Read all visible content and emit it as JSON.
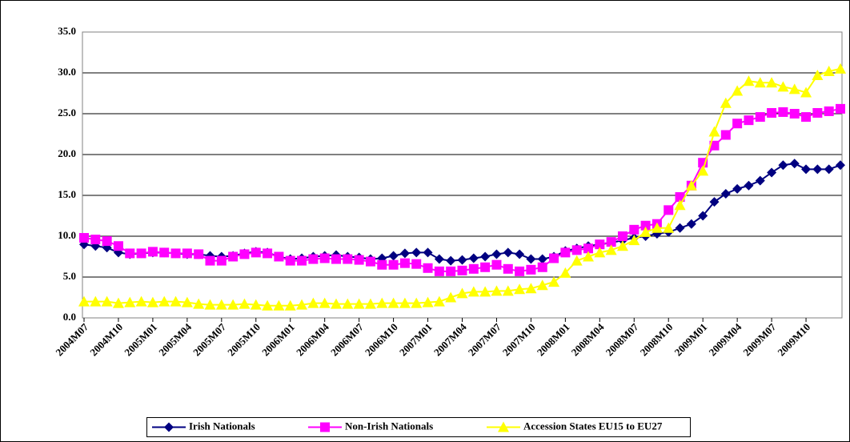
{
  "chart_data": {
    "type": "line",
    "categories": [
      "2004M07",
      null,
      null,
      "2004M10",
      null,
      null,
      "2005M01",
      null,
      null,
      "2005M04",
      null,
      null,
      "2005M07",
      null,
      null,
      "2005M10",
      null,
      null,
      "2006M01",
      null,
      null,
      "2006M04",
      null,
      null,
      "2006M07",
      null,
      null,
      "2006M10",
      null,
      null,
      "2007M01",
      null,
      null,
      "2007M04",
      null,
      null,
      "2007M07",
      null,
      null,
      "2007M10",
      null,
      null,
      "2008M01",
      null,
      null,
      "2008M04",
      null,
      null,
      "2008M07",
      null,
      null,
      "2008M10",
      null,
      null,
      "2009M01",
      null,
      null,
      "2009M04",
      null,
      null,
      "2009M07",
      null,
      null,
      "2009M10",
      null,
      null,
      null
    ],
    "series": [
      {
        "name": "Irish Nationals",
        "color": "#000080",
        "marker": "diamond",
        "values": [
          9.0,
          8.8,
          8.6,
          8.0,
          7.8,
          7.9,
          8.0,
          8.0,
          7.9,
          7.8,
          7.8,
          7.6,
          7.5,
          7.6,
          7.9,
          8.1,
          8.0,
          7.5,
          7.2,
          7.3,
          7.5,
          7.6,
          7.7,
          7.5,
          7.4,
          7.2,
          7.3,
          7.6,
          7.9,
          8.0,
          8.0,
          7.2,
          7.0,
          7.1,
          7.3,
          7.5,
          7.8,
          8.0,
          7.8,
          7.2,
          7.2,
          7.5,
          8.2,
          8.5,
          8.8,
          9.0,
          9.2,
          9.5,
          9.8,
          10.0,
          10.3,
          10.5,
          11.0,
          11.5,
          12.5,
          14.2,
          15.2,
          15.8,
          16.2,
          16.8,
          17.8,
          18.7,
          18.9,
          18.2,
          18.2,
          18.2,
          18.7
        ]
      },
      {
        "name": "Non-Irish Nationals",
        "color": "#ff00ff",
        "marker": "square",
        "values": [
          9.8,
          9.6,
          9.4,
          8.8,
          7.9,
          7.9,
          8.1,
          8.0,
          7.9,
          7.9,
          7.8,
          7.0,
          7.0,
          7.5,
          7.8,
          8.0,
          7.9,
          7.5,
          7.0,
          7.0,
          7.2,
          7.3,
          7.2,
          7.2,
          7.1,
          6.9,
          6.5,
          6.5,
          6.7,
          6.6,
          6.1,
          5.7,
          5.7,
          5.8,
          6.0,
          6.2,
          6.5,
          6.0,
          5.7,
          5.9,
          6.2,
          7.3,
          8.0,
          8.3,
          8.5,
          9.0,
          9.3,
          10.0,
          10.8,
          11.3,
          11.5,
          13.2,
          14.8,
          16.2,
          19.0,
          21.1,
          22.4,
          23.8,
          24.2,
          24.6,
          25.1,
          25.2,
          25.0,
          24.6,
          25.1,
          25.3,
          25.6
        ]
      },
      {
        "name": "Accession States EU15 to EU27",
        "color": "#ffff00",
        "marker": "triangle",
        "values": [
          2.0,
          2.0,
          2.0,
          1.8,
          1.9,
          2.0,
          1.9,
          2.0,
          2.0,
          1.9,
          1.7,
          1.6,
          1.6,
          1.6,
          1.7,
          1.6,
          1.5,
          1.5,
          1.5,
          1.6,
          1.8,
          1.8,
          1.7,
          1.7,
          1.7,
          1.7,
          1.8,
          1.8,
          1.8,
          1.8,
          1.9,
          2.0,
          2.5,
          3.0,
          3.2,
          3.2,
          3.3,
          3.3,
          3.5,
          3.6,
          4.0,
          4.4,
          5.5,
          7.0,
          7.5,
          8.0,
          8.3,
          8.8,
          9.5,
          10.5,
          11.0,
          11.0,
          13.8,
          16.2,
          18.0,
          22.8,
          26.3,
          27.8,
          29.0,
          28.8,
          28.8,
          28.3,
          28.0,
          27.6,
          29.7,
          30.2,
          30.5
        ]
      }
    ],
    "ylim": [
      0,
      35
    ],
    "yticks": [
      {
        "value": 0,
        "label": "0.0"
      },
      {
        "value": 5,
        "label": "5.0"
      },
      {
        "value": 10,
        "label": "10.0"
      },
      {
        "value": 15,
        "label": "15.0"
      },
      {
        "value": 20,
        "label": "20.0"
      },
      {
        "value": 25,
        "label": "25.0"
      },
      {
        "value": 30,
        "label": "30.0"
      },
      {
        "value": 35,
        "label": "35.0"
      }
    ],
    "grid": true,
    "legend": "bottom"
  }
}
